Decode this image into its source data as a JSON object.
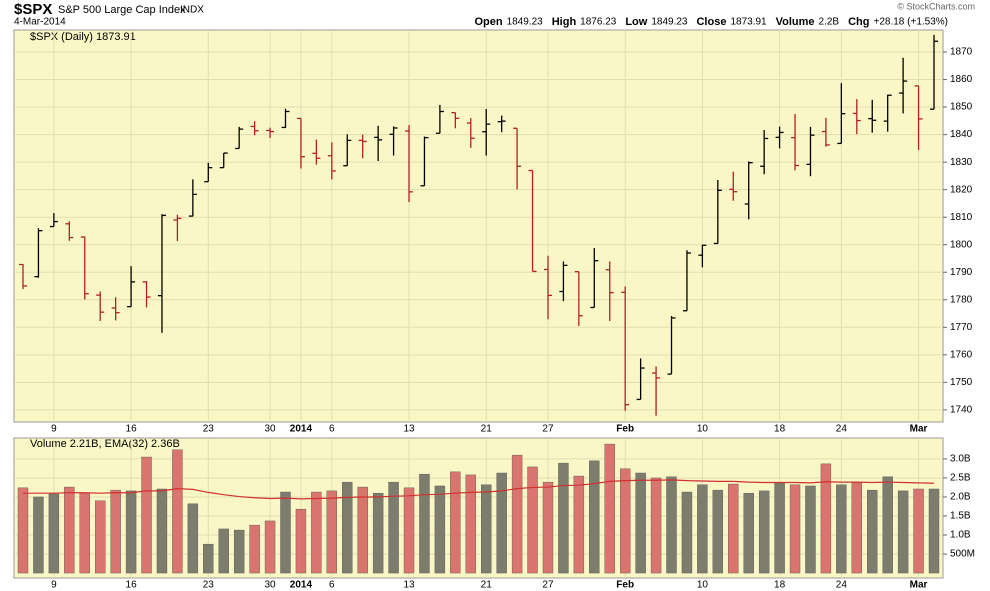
{
  "header": {
    "symbol": "$SPX",
    "name": "S&P 500 Large Cap Index",
    "exchange": "INDX",
    "date": "4-Mar-2014",
    "copyright": "© StockCharts.com",
    "quote": [
      {
        "label": "Open",
        "value": 1849.23
      },
      {
        "label": "High",
        "value": 1876.23
      },
      {
        "label": "Low",
        "value": 1849.23
      },
      {
        "label": "Close",
        "value": 1873.91
      },
      {
        "label": "Volume",
        "value": "2.2B"
      },
      {
        "label": "Chg",
        "value": "+28.18 (+1.53%)"
      }
    ]
  },
  "chart_data": [
    {
      "type": "ohlc",
      "legend": "$SPX (Daily) 1873.91",
      "up_color": "#000000",
      "down_color": "#b0202a",
      "grid": true,
      "categories": [
        null,
        null,
        "9",
        null,
        null,
        null,
        null,
        "16",
        null,
        null,
        null,
        null,
        "23",
        null,
        null,
        null,
        "30",
        null,
        "2014",
        null,
        "6",
        null,
        null,
        null,
        null,
        "13",
        null,
        null,
        null,
        null,
        "21",
        null,
        null,
        null,
        "27",
        null,
        null,
        null,
        null,
        "Feb",
        null,
        null,
        null,
        null,
        "10",
        null,
        null,
        null,
        null,
        "18",
        null,
        null,
        null,
        "24",
        null,
        null,
        null,
        null,
        "Mar",
        null
      ],
      "open": [
        1792.8,
        1788.4,
        1806.6,
        1807.6,
        1802.8,
        1781.7,
        1777.0,
        1777.5,
        1786.5,
        1781.5,
        1809.0,
        1810.4,
        1822.9,
        1828.0,
        1834.96,
        1842.97,
        1841.5,
        1842.6,
        1845.9,
        1833.2,
        1832.3,
        1828.7,
        1837.9,
        1839.0,
        1840.1,
        1841.3,
        1821.4,
        1840.5,
        1847.99,
        1844.2,
        1841.05,
        1844.7,
        1842.3,
        1826.96,
        1791.0,
        1783.0,
        1790.2,
        1777.2,
        1790.9,
        1782.7,
        1743.8,
        1753.4,
        1752.99,
        1776.0,
        1796.2,
        1800.45,
        1820.1,
        1814.8,
        1828.5,
        1839.0,
        1838.9,
        1829.2,
        1841.1,
        1836.8,
        1847.7,
        1845.8,
        1844.9,
        1855.1,
        1857.7,
        1849.23
      ],
      "high": [
        1793.0,
        1806.0,
        1811.5,
        1808.5,
        1802.97,
        1782.99,
        1780.9,
        1792.2,
        1786.8,
        1811.1,
        1810.9,
        1823.75,
        1829.75,
        1833.3,
        1842.8,
        1844.9,
        1842.5,
        1849.4,
        1845.9,
        1838.2,
        1837.2,
        1840.1,
        1840.0,
        1843.2,
        1843.0,
        1843.45,
        1839.3,
        1850.8,
        1847.99,
        1846.0,
        1849.3,
        1846.9,
        1842.3,
        1826.96,
        1795.98,
        1793.9,
        1790.2,
        1798.8,
        1793.9,
        1784.8,
        1758.7,
        1755.8,
        1774.1,
        1798.0,
        1800.0,
        1823.5,
        1826.55,
        1830.25,
        1841.65,
        1842.9,
        1847.5,
        1842.8,
        1846.1,
        1858.7,
        1852.9,
        1852.65,
        1854.5,
        1867.9,
        1857.7,
        1876.23
      ],
      "low": [
        1783.9,
        1788.0,
        1806.6,
        1801.4,
        1780.1,
        1772.3,
        1772.5,
        1777.5,
        1777.2,
        1767.99,
        1801.35,
        1810.25,
        1822.9,
        1828.0,
        1834.96,
        1839.8,
        1838.8,
        1842.4,
        1827.7,
        1829.1,
        1823.7,
        1828.7,
        1831.4,
        1830.4,
        1832.4,
        1815.5,
        1821.4,
        1840.5,
        1842.3,
        1835.2,
        1832.4,
        1840.9,
        1820.1,
        1790.3,
        1772.9,
        1779.5,
        1770.45,
        1777.2,
        1772.3,
        1739.7,
        1743.8,
        1737.9,
        1752.99,
        1776.0,
        1791.8,
        1800.4,
        1815.98,
        1809.2,
        1825.6,
        1835.0,
        1826.99,
        1824.9,
        1835.6,
        1836.8,
        1840.2,
        1840.7,
        1841.1,
        1847.7,
        1834.4,
        1849.23
      ],
      "close": [
        1785.0,
        1805.1,
        1808.4,
        1802.6,
        1782.2,
        1775.5,
        1775.3,
        1786.5,
        1781.0,
        1810.65,
        1809.6,
        1818.3,
        1827.99,
        1833.3,
        1842.0,
        1841.4,
        1841.1,
        1848.4,
        1831.98,
        1831.4,
        1826.8,
        1837.9,
        1837.5,
        1838.1,
        1842.4,
        1819.2,
        1838.9,
        1848.4,
        1845.9,
        1838.7,
        1843.8,
        1844.9,
        1828.5,
        1790.3,
        1781.6,
        1792.5,
        1774.2,
        1794.2,
        1782.6,
        1741.9,
        1755.2,
        1751.6,
        1773.4,
        1797.0,
        1799.8,
        1819.75,
        1819.26,
        1829.8,
        1838.6,
        1840.8,
        1828.75,
        1839.8,
        1836.25,
        1847.6,
        1845.1,
        1845.2,
        1854.3,
        1859.45,
        1845.7,
        1873.91
      ],
      "ylim": [
        1735.6,
        1878
      ],
      "yticks": [
        1740,
        1750,
        1760,
        1770,
        1780,
        1790,
        1800,
        1810,
        1820,
        1830,
        1840,
        1850,
        1860,
        1870
      ]
    },
    {
      "type": "bar",
      "legend": "Volume 2.21B, EMA(32) 2.36B",
      "up_color": "#7d7d6e",
      "down_color": "#d9756e",
      "grid": true,
      "values": [
        2.24,
        2.0,
        2.08,
        2.26,
        2.1,
        1.9,
        2.18,
        2.16,
        3.05,
        2.21,
        3.24,
        1.82,
        0.76,
        1.16,
        1.13,
        1.26,
        1.37,
        2.13,
        1.68,
        2.13,
        2.16,
        2.39,
        2.26,
        2.1,
        2.39,
        2.24,
        2.6,
        2.29,
        2.66,
        2.58,
        2.32,
        2.63,
        3.1,
        2.79,
        2.39,
        2.89,
        2.55,
        2.95,
        3.39,
        2.74,
        2.63,
        2.5,
        2.53,
        2.13,
        2.32,
        2.18,
        2.34,
        2.1,
        2.16,
        2.37,
        2.32,
        2.29,
        2.87,
        2.32,
        2.37,
        2.18,
        2.53,
        2.16,
        2.21,
        2.21
      ],
      "ema": {
        "color": "#d03030",
        "values": [
          2.1,
          2.1,
          2.1,
          2.11,
          2.11,
          2.1,
          2.11,
          2.11,
          2.16,
          2.16,
          2.22,
          2.2,
          2.12,
          2.06,
          2.01,
          1.98,
          1.96,
          1.97,
          1.95,
          1.96,
          1.97,
          1.99,
          2.0,
          2.0,
          2.02,
          2.03,
          2.06,
          2.07,
          2.1,
          2.12,
          2.13,
          2.16,
          2.22,
          2.25,
          2.26,
          2.3,
          2.31,
          2.35,
          2.41,
          2.43,
          2.44,
          2.44,
          2.45,
          2.43,
          2.42,
          2.41,
          2.41,
          2.39,
          2.38,
          2.38,
          2.38,
          2.37,
          2.4,
          2.39,
          2.39,
          2.38,
          2.39,
          2.38,
          2.37,
          2.36
        ]
      },
      "ylim": [
        -0.13,
        3.55
      ],
      "yticks": [
        {
          "value": 0.5,
          "label": "500M"
        },
        {
          "value": 1,
          "label": "1.0B"
        },
        {
          "value": 1.5,
          "label": "1.5B"
        },
        {
          "value": 2,
          "label": "2.0B"
        },
        {
          "value": 2.5,
          "label": "2.5B"
        },
        {
          "value": 3,
          "label": "3.0B"
        }
      ]
    }
  ]
}
